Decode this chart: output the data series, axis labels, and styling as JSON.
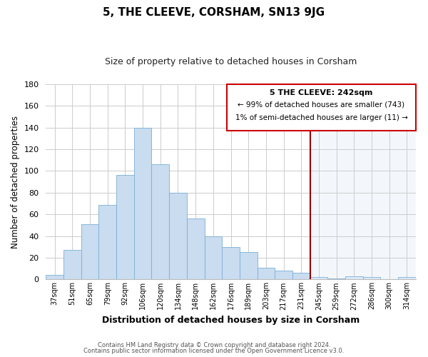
{
  "title": "5, THE CLEEVE, CORSHAM, SN13 9JG",
  "subtitle": "Size of property relative to detached houses in Corsham",
  "xlabel": "Distribution of detached houses by size in Corsham",
  "ylabel": "Number of detached properties",
  "bar_labels": [
    "37sqm",
    "51sqm",
    "65sqm",
    "79sqm",
    "92sqm",
    "106sqm",
    "120sqm",
    "134sqm",
    "148sqm",
    "162sqm",
    "176sqm",
    "189sqm",
    "203sqm",
    "217sqm",
    "231sqm",
    "245sqm",
    "259sqm",
    "272sqm",
    "286sqm",
    "300sqm",
    "314sqm"
  ],
  "bar_heights": [
    4,
    27,
    51,
    69,
    96,
    140,
    106,
    80,
    56,
    40,
    30,
    25,
    11,
    8,
    6,
    2,
    1,
    3,
    2,
    0,
    2
  ],
  "bar_color": "#c9dcf0",
  "bar_edge_color": "#7bafd4",
  "highlight_color": "#ddeaf8",
  "vline_x_index": 15,
  "vline_color": "#990000",
  "ylim": [
    0,
    180
  ],
  "yticks": [
    0,
    20,
    40,
    60,
    80,
    100,
    120,
    140,
    160,
    180
  ],
  "annotation_title": "5 THE CLEEVE: 242sqm",
  "annotation_line1": "← 99% of detached houses are smaller (743)",
  "annotation_line2": "1% of semi-detached houses are larger (11) →",
  "annotation_box_color": "#ffffff",
  "annotation_edge_color": "#cc0000",
  "footer_line1": "Contains HM Land Registry data © Crown copyright and database right 2024.",
  "footer_line2": "Contains public sector information licensed under the Open Government Licence v3.0.",
  "grid_color": "#cccccc",
  "background_color": "#ffffff"
}
